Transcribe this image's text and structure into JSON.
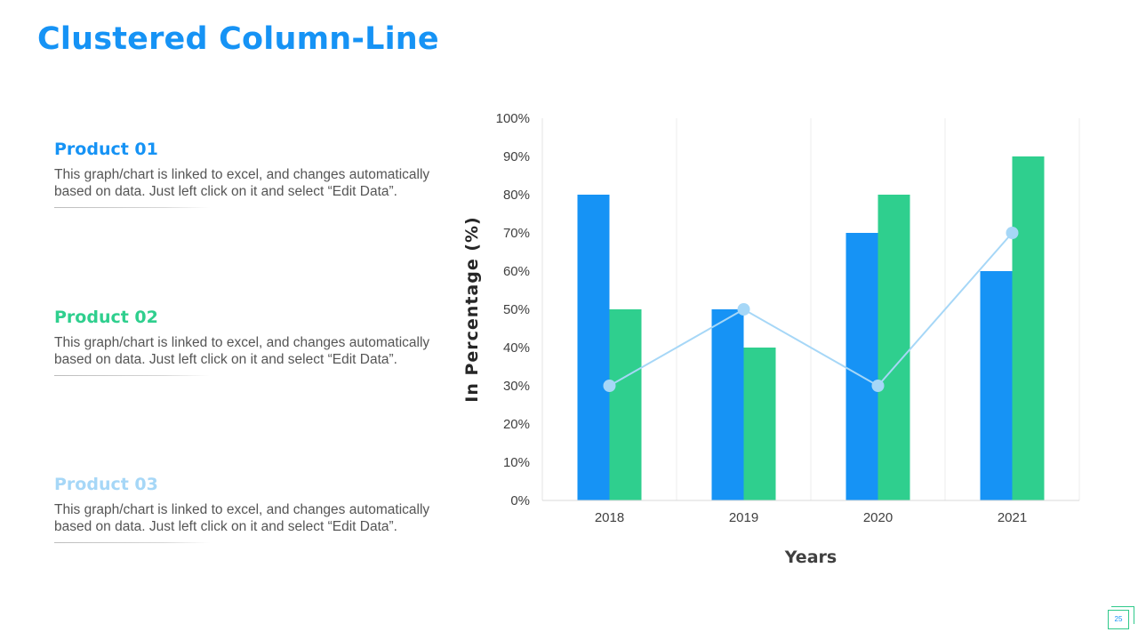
{
  "slide": {
    "title": "Clustered Column-Line",
    "page_number": "25"
  },
  "products": [
    {
      "name": "Product 01",
      "color": "#1693F5",
      "description": "This graph/chart is linked to excel, and changes automatically based on data. Just left click on it and select “Edit Data”."
    },
    {
      "name": "Product 02",
      "color": "#2FCF8E",
      "description": "This graph/chart is linked to excel, and changes automatically based on data. Just left click on it and select “Edit Data”."
    },
    {
      "name": "Product 03",
      "color": "#A6D7F7",
      "description": "This graph/chart is linked to excel, and changes automatically based on data. Just left click on it and select “Edit Data”."
    }
  ],
  "chart_data": {
    "type": "bar",
    "categories": [
      "2018",
      "2019",
      "2020",
      "2021"
    ],
    "series": [
      {
        "name": "Product 01",
        "type": "bar",
        "color": "#1693F5",
        "values": [
          80,
          50,
          70,
          60
        ]
      },
      {
        "name": "Product 02",
        "type": "bar",
        "color": "#2FCF8E",
        "values": [
          50,
          40,
          80,
          90
        ]
      },
      {
        "name": "Product 03",
        "type": "line",
        "color": "#A6D7F7",
        "values": [
          30,
          50,
          30,
          70
        ]
      }
    ],
    "xlabel": "Years",
    "ylabel": "In Percentage (%)",
    "ylim": [
      0,
      100
    ],
    "yticks": [
      0,
      10,
      20,
      30,
      40,
      50,
      60,
      70,
      80,
      90,
      100
    ],
    "ytick_labels": [
      "0%",
      "10%",
      "20%",
      "30%",
      "40%",
      "50%",
      "60%",
      "70%",
      "80%",
      "90%",
      "100%"
    ],
    "grid": "vertical category separators"
  }
}
